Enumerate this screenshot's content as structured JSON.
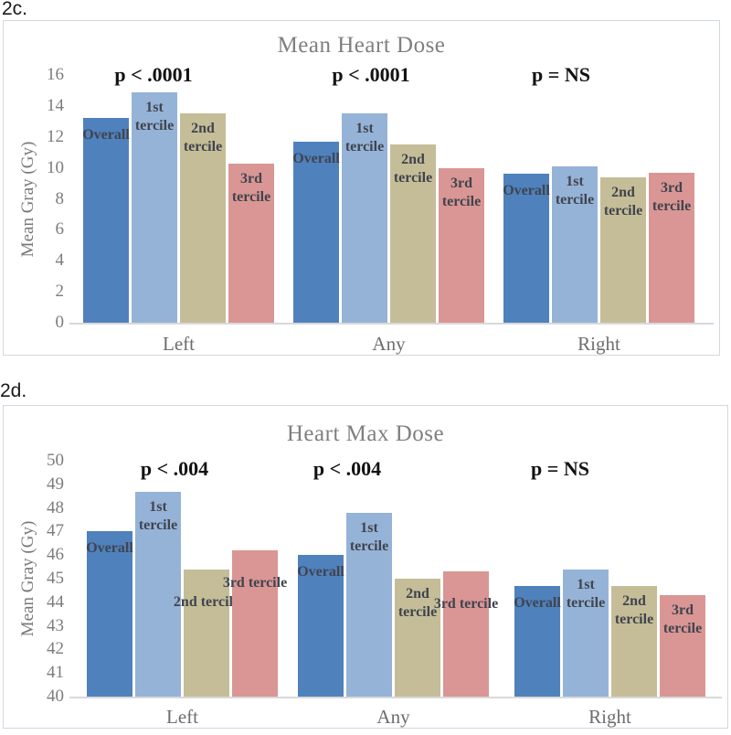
{
  "chart_data": [
    {
      "type": "bar",
      "figure_label": "2c.",
      "title": "Mean Heart Dose",
      "xlabel": "",
      "ylabel": "Mean Gray (Gy)",
      "ylim": [
        0,
        16
      ],
      "yticks": [
        0,
        2,
        4,
        6,
        8,
        10,
        12,
        14,
        16
      ],
      "grid": false,
      "legend_position": "none",
      "categories": [
        "Left",
        "Any",
        "Right"
      ],
      "series": [
        {
          "name": "Overall",
          "color": "#4F81BD",
          "values": [
            13.2,
            11.7,
            9.6
          ]
        },
        {
          "name": "1st tercile",
          "color": "#95B3D7",
          "values": [
            14.9,
            13.5,
            10.1
          ]
        },
        {
          "name": "2nd tercile",
          "color": "#C4BD97",
          "values": [
            13.5,
            11.5,
            9.4
          ]
        },
        {
          "name": "3rd tercile",
          "color": "#D99694",
          "values": [
            10.3,
            10.0,
            9.7
          ]
        }
      ],
      "bar_labels": [
        [
          "Overall",
          "1st\ntercile",
          "2nd\ntercile",
          "3rd\ntercile"
        ],
        [
          "Overall",
          "1st\ntercile",
          "2nd\ntercile",
          "3rd\ntercile"
        ],
        [
          "Overall",
          "1st\ntercile",
          "2nd\ntercile",
          "3rd\ntercile"
        ]
      ],
      "annotations": [
        {
          "text": "p < .0001",
          "x": 167
        },
        {
          "text": "p < .0001",
          "x": 405
        },
        {
          "text": "p = NS",
          "x": 613
        }
      ]
    },
    {
      "type": "bar",
      "figure_label": "2d.",
      "title": "Heart Max Dose",
      "xlabel": "",
      "ylabel": "Mean Gray (Gy)",
      "ylim": [
        40,
        50
      ],
      "yticks": [
        40,
        41,
        42,
        43,
        44,
        45,
        46,
        47,
        48,
        49,
        50
      ],
      "grid": false,
      "legend_position": "none",
      "categories": [
        "Left",
        "Any",
        "Right"
      ],
      "series": [
        {
          "name": "Overall",
          "color": "#4F81BD",
          "values": [
            47.0,
            46.0,
            44.7
          ]
        },
        {
          "name": "1st tercile",
          "color": "#95B3D7",
          "values": [
            48.7,
            47.8,
            45.4
          ]
        },
        {
          "name": "2nd tercile",
          "color": "#C4BD97",
          "values": [
            45.4,
            45.0,
            44.7
          ]
        },
        {
          "name": "3rd tercile",
          "color": "#D99694",
          "values": [
            46.2,
            45.3,
            44.3
          ]
        }
      ],
      "bar_labels": [
        [
          "Overall",
          "1st\ntercile",
          "2nd tercile",
          "3rd tercile"
        ],
        [
          "Overall",
          "1st\ntercile",
          "2nd\ntercile",
          "3rd tercile"
        ],
        [
          "Overall",
          "1st\ntercile",
          "2nd\ntercile",
          "3rd\ntercile"
        ]
      ],
      "annotations": [
        {
          "text": "p < .004",
          "x": 190
        },
        {
          "text": "p < .004",
          "x": 379
        },
        {
          "text": "p = NS",
          "x": 612
        }
      ]
    }
  ]
}
